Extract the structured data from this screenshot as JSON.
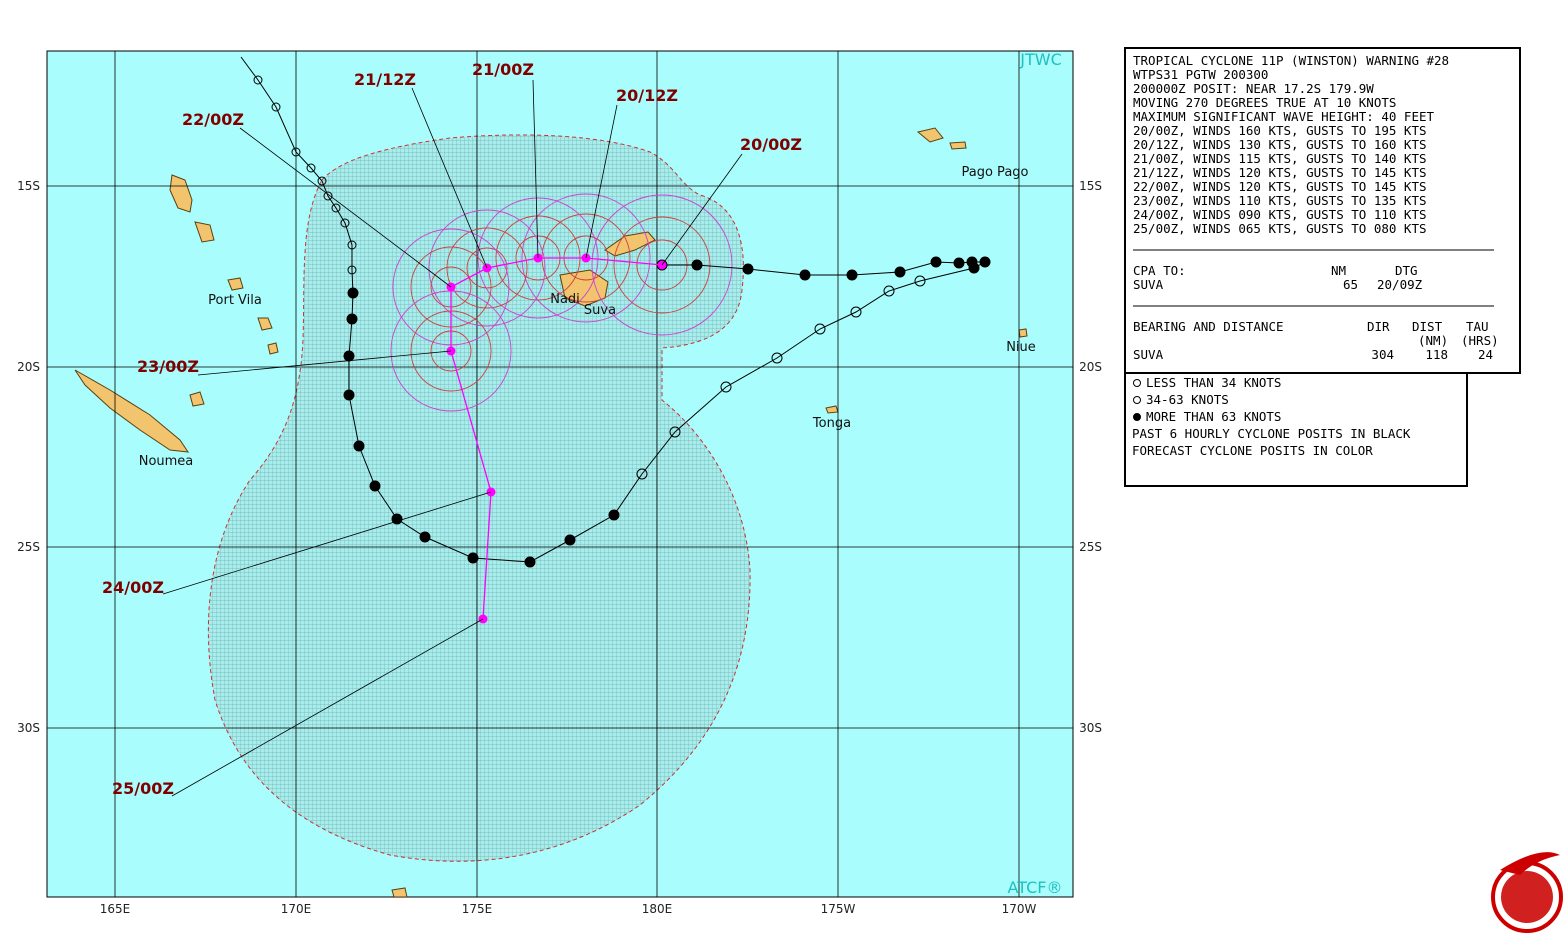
{
  "map": {
    "agency": "JTWC",
    "atcf": "ATCF®",
    "lat_labels": [
      "15S",
      "20S",
      "25S",
      "30S"
    ],
    "lon_labels": [
      "165E",
      "170E",
      "175E",
      "180E",
      "175W",
      "170W"
    ],
    "places": [
      "Pago Pago",
      "Port Vila",
      "Nadi",
      "Suva",
      "Niue",
      "Tonga",
      "Noumea"
    ],
    "forecast_labels": [
      "21/12Z",
      "21/00Z",
      "20/12Z",
      "22/00Z",
      "20/00Z",
      "23/00Z",
      "24/00Z",
      "25/00Z"
    ]
  },
  "warning": {
    "lines": [
      "TROPICAL CYCLONE 11P (WINSTON) WARNING #28",
      "WTPS31 PGTW 200300",
      "200000Z POSIT: NEAR 17.2S 179.9W",
      "MOVING 270 DEGREES TRUE AT 10 KNOTS",
      "MAXIMUM SIGNIFICANT WAVE HEIGHT: 40 FEET",
      "20/00Z, WINDS 160 KTS, GUSTS TO 195 KTS",
      "20/12Z, WINDS 130 KTS, GUSTS TO 160 KTS",
      "21/00Z, WINDS 115 KTS, GUSTS TO 140 KTS",
      "21/12Z, WINDS 120 KTS, GUSTS TO 145 KTS",
      "22/00Z, WINDS 120 KTS, GUSTS TO 145 KTS",
      "23/00Z, WINDS 110 KTS, GUSTS TO 135 KTS",
      "24/00Z, WINDS 090 KTS, GUSTS TO 110 KTS",
      "25/00Z, WINDS 065 KTS, GUSTS TO 080 KTS"
    ],
    "cpa": {
      "header": [
        "CPA TO:",
        "NM",
        "DTG"
      ],
      "row": [
        "SUVA",
        "65",
        "20/09Z"
      ]
    },
    "bearing": {
      "header": [
        "BEARING AND DISTANCE",
        "DIR",
        "DIST",
        "TAU"
      ],
      "subheader": [
        "(NM)",
        "(HRS)"
      ],
      "row": [
        "SUVA",
        "304",
        "118",
        "24"
      ]
    }
  },
  "legend": [
    "LESS THAN 34 KNOTS",
    "34-63 KNOTS",
    "MORE THAN 63 KNOTS",
    "PAST 6 HOURLY CYCLONE POSITS IN BLACK",
    "FORECAST CYCLONE POSITS IN COLOR"
  ]
}
